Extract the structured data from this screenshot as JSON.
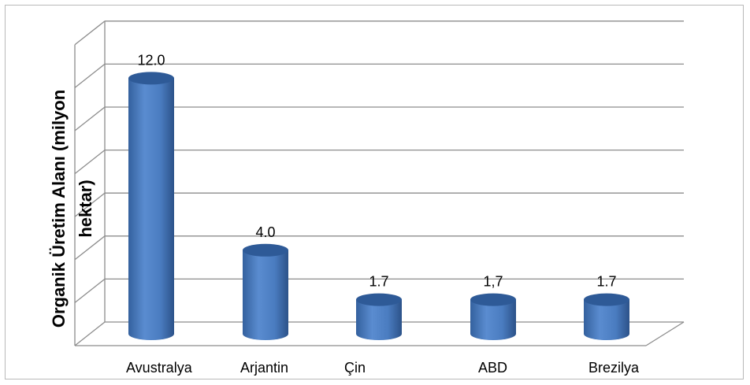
{
  "chart_data": {
    "type": "bar",
    "style": "3d-cylinder",
    "categories": [
      "Avustralya",
      "Arjantin",
      "Çin",
      "ABD",
      "Brezilya"
    ],
    "values": [
      12.0,
      4.0,
      1.7,
      1.7,
      1.7
    ],
    "data_labels": [
      "12.0",
      "4.0",
      "1.7",
      "1,7",
      "1.7"
    ],
    "title": "",
    "xlabel": "",
    "ylabel": "Organik Üretim Alanı (milyon hektar)",
    "ylim": [
      0,
      14
    ],
    "grid": true,
    "legend": "none",
    "bar_color": "#4f81bd",
    "bar_top_color": "#2e5a97"
  }
}
